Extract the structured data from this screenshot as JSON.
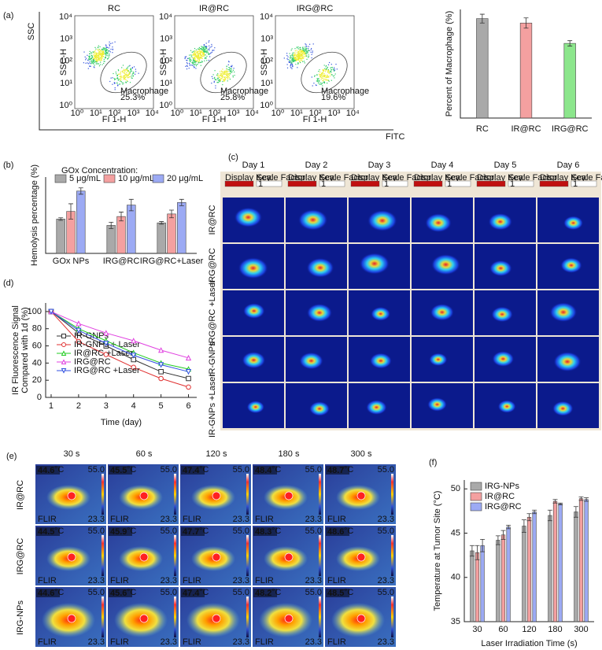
{
  "panel_labels": [
    "(a)",
    "(b)",
    "(c)",
    "(d)",
    "(e)",
    "(f)"
  ],
  "flow": {
    "axis_y": "SSC",
    "axis_x": "FITC",
    "inner_y": "SSC-H",
    "inner_x": "FI 1-H",
    "gate_label": "Macrophage",
    "ticks": [
      "10⁰",
      "10¹",
      "10²",
      "10³",
      "10⁴"
    ],
    "plots": [
      {
        "title": "RC",
        "percent": "25.3%"
      },
      {
        "title": "IR@RC",
        "percent": "25.8%"
      },
      {
        "title": "IRG@RC",
        "percent": "19.6%"
      }
    ]
  },
  "chart_data": [
    {
      "type": "bar",
      "ylabel": "Percent of Macrophage (%)",
      "categories": [
        "RC",
        "IR@RC",
        "IRG@RC"
      ],
      "values": [
        29.3,
        28,
        22
      ],
      "errors": [
        1.3,
        1.5,
        0.8
      ],
      "colors": [
        "#8c8c8c",
        "#f08080",
        "#66dd66"
      ],
      "ylim": [
        0,
        32
      ]
    },
    {
      "type": "bar",
      "ylabel": "Hemolysis percentage (%)",
      "legend_title": "GOx Concentration:",
      "legend": "top",
      "categories": [
        "GOx NPs",
        "IRG@RC",
        "IRG@RC+Laser"
      ],
      "ylim": [
        0,
        6
      ],
      "series": [
        {
          "name": "5 μg/mL",
          "color": "#8c8c8c",
          "values": [
            2.7,
            2.2,
            2.4
          ],
          "errors": [
            0.1,
            0.25,
            0.1
          ]
        },
        {
          "name": "10 μg/mL",
          "color": "#f08080",
          "values": [
            3.3,
            2.9,
            3.1
          ],
          "errors": [
            0.6,
            0.35,
            0.3
          ]
        },
        {
          "name": "20 μg/mL",
          "color": "#7b8ef0",
          "values": [
            4.9,
            3.8,
            4.0
          ],
          "errors": [
            0.25,
            0.45,
            0.25
          ]
        }
      ]
    },
    {
      "type": "line",
      "ylabel": "IR Fluorescence Signal",
      "ylabel2": "Compared with 1d (%)",
      "xlabel": "Time (day)",
      "legend": "lower left",
      "x": [
        1,
        2,
        3,
        4,
        5,
        6
      ],
      "xlim": [
        0.8,
        6.3
      ],
      "xticks": [
        1,
        2,
        3,
        4,
        5,
        6
      ],
      "ylim": [
        0,
        110
      ],
      "yticks": [
        0,
        20,
        40,
        60,
        80,
        100
      ],
      "series": [
        {
          "name": "IR-GNPs",
          "color": "#333333",
          "marker": "square",
          "values": [
            100,
            75,
            60,
            44,
            30,
            22
          ]
        },
        {
          "name": "IR-GNPs + Laser",
          "color": "#e03030",
          "marker": "circle",
          "values": [
            100,
            65,
            50,
            35,
            22,
            12
          ]
        },
        {
          "name": "IR@RC +Laser",
          "color": "#22cc22",
          "marker": "triangle",
          "values": [
            100,
            80,
            66,
            52,
            40,
            33
          ]
        },
        {
          "name": "IRG@RC",
          "color": "#e040e0",
          "marker": "triangle",
          "values": [
            100,
            86,
            75,
            66,
            55,
            46
          ]
        },
        {
          "name": "IRG@RC +Laser",
          "color": "#3050e0",
          "marker": "down-triangle",
          "values": [
            100,
            78,
            63,
            49,
            38,
            30
          ]
        }
      ]
    },
    {
      "type": "bar",
      "ylabel": "Temperature at Tumor Site (°C)",
      "xlabel": "Laser Irradiation Time (s)",
      "legend": "upper left",
      "categories": [
        "30",
        "60",
        "120",
        "180",
        "300"
      ],
      "ylim": [
        35,
        51
      ],
      "yticks": [
        35,
        40,
        45,
        50
      ],
      "series": [
        {
          "name": "IRG-NPs",
          "color": "#8c8c8c",
          "values": [
            43,
            44.2,
            45.8,
            47,
            47.4
          ],
          "errors": [
            0.6,
            0.5,
            0.7,
            0.6,
            0.6
          ]
        },
        {
          "name": "IR@RC",
          "color": "#f08080",
          "values": [
            42.8,
            44.8,
            46.8,
            48.6,
            48.9
          ],
          "errors": [
            0.8,
            0.5,
            0.4,
            0.2,
            0.2
          ]
        },
        {
          "name": "IRG@RC",
          "color": "#7b8ef0",
          "values": [
            43.6,
            45.7,
            47.4,
            48.3,
            48.8
          ],
          "errors": [
            0.7,
            0.2,
            0.2,
            0.1,
            0.2
          ]
        }
      ]
    }
  ],
  "imaging": {
    "days": [
      "Day 1",
      "Day 2",
      "Day 3",
      "Day 4",
      "Day 5",
      "Day 6"
    ],
    "rows": [
      "IR@RC",
      "IRG@RC",
      "IRG@RC +Laser",
      "IR-GNPs",
      "IR-GNPs +Laser"
    ],
    "display_key": "Display Key:",
    "scale_factor": "Scale Factor:",
    "factor": "1"
  },
  "thermal": {
    "times": [
      "30 s",
      "60 s",
      "120 s",
      "180 s",
      "300 s"
    ],
    "rows": [
      "IR@RC",
      "IRG@RC",
      "IRG-NPs"
    ],
    "temps": [
      [
        "44.6",
        "45.5",
        "47.4",
        "48.4",
        "48.7"
      ],
      [
        "44.5",
        "45.9",
        "47.7",
        "48.3",
        "48.6"
      ],
      [
        "44.6",
        "45.6",
        "47.4",
        "48.2",
        "48.5"
      ]
    ],
    "unit": "°C",
    "max": "55.0",
    "min": "23.3",
    "brand": "FLIR"
  }
}
